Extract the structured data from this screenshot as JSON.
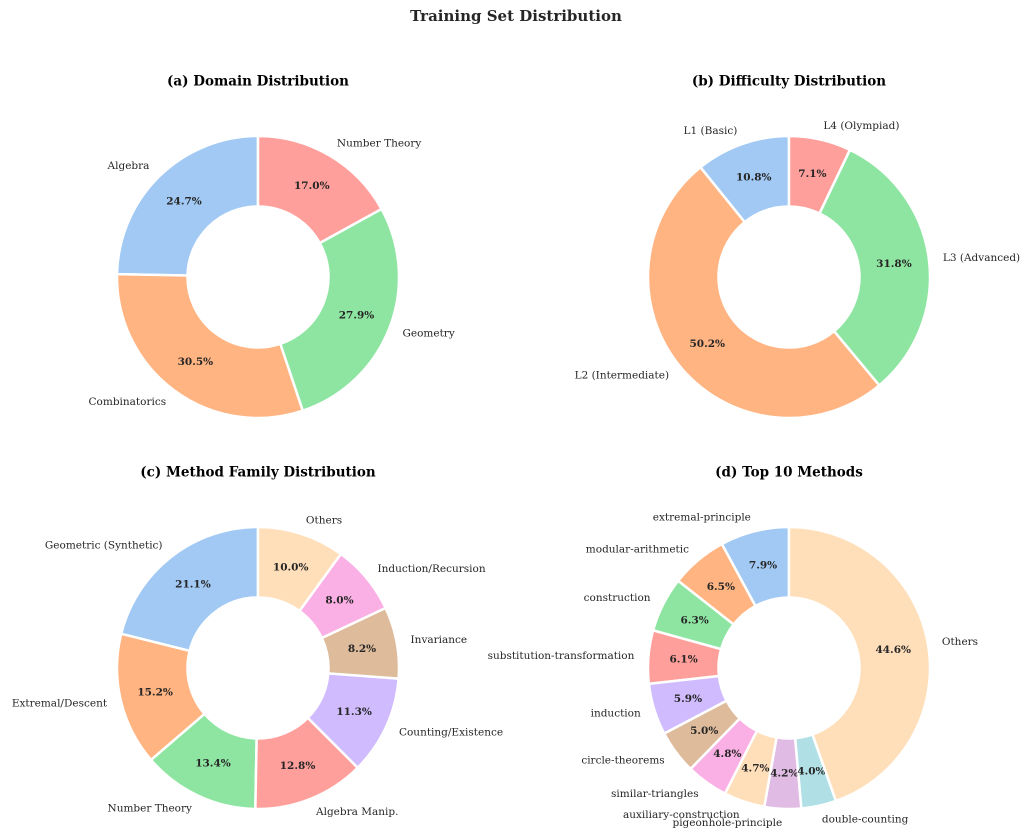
{
  "title": "Training Set Distribution",
  "chart_data": [
    {
      "type": "pie",
      "title": "(a) Domain Distribution",
      "donut": true,
      "start_angle": 90,
      "counterclock": true,
      "categories": [
        "Algebra",
        "Combinatorics",
        "Geometry",
        "Number Theory"
      ],
      "values": [
        24.7,
        30.5,
        27.9,
        17.0
      ],
      "value_labels": [
        "24.7%",
        "30.5%",
        "27.9%",
        "17.0%"
      ],
      "colors": [
        "#a1c9f4",
        "#ffb482",
        "#8de5a1",
        "#ff9f9b"
      ]
    },
    {
      "type": "pie",
      "title": "(b) Difficulty Distribution",
      "donut": true,
      "start_angle": 90,
      "counterclock": true,
      "categories": [
        "L1 (Basic)",
        "L2 (Intermediate)",
        "L3 (Advanced)",
        "L4 (Olympiad)"
      ],
      "values": [
        10.8,
        50.2,
        31.8,
        7.1
      ],
      "value_labels": [
        "10.8%",
        "50.2%",
        "31.8%",
        "7.1%"
      ],
      "colors": [
        "#a1c9f4",
        "#ffb482",
        "#8de5a1",
        "#ff9f9b"
      ]
    },
    {
      "type": "pie",
      "title": "(c) Method Family Distribution",
      "donut": true,
      "start_angle": 90,
      "counterclock": true,
      "categories": [
        "Geometric (Synthetic)",
        "Extremal/Descent",
        "Number Theory",
        "Algebra Manip.",
        "Counting/Existence",
        "Invariance",
        "Induction/Recursion",
        "Others"
      ],
      "values": [
        21.1,
        15.2,
        13.4,
        12.8,
        11.3,
        8.2,
        8.0,
        10.0
      ],
      "value_labels": [
        "21.1%",
        "15.2%",
        "13.4%",
        "12.8%",
        "11.3%",
        "8.2%",
        "8.0%",
        "10.0%"
      ],
      "colors": [
        "#a1c9f4",
        "#ffb482",
        "#8de5a1",
        "#ff9f9b",
        "#d0bbff",
        "#debb9b",
        "#fab0e4",
        "#ffdfba"
      ]
    },
    {
      "type": "pie",
      "title": "(d) Top 10 Methods",
      "donut": true,
      "start_angle": 90,
      "counterclock": true,
      "categories": [
        "extremal-principle",
        "modular-arithmetic",
        "construction",
        "substitution-transformation",
        "induction",
        "circle-theorems",
        "similar-triangles",
        "auxiliary-construction",
        "pigeonhole-principle",
        "double-counting",
        "Others"
      ],
      "values": [
        7.9,
        6.5,
        6.3,
        6.1,
        5.9,
        5.0,
        4.8,
        4.7,
        4.2,
        4.0,
        44.6
      ],
      "value_labels": [
        "7.9%",
        "6.5%",
        "6.3%",
        "6.1%",
        "5.9%",
        "5.0%",
        "4.8%",
        "4.7%",
        "4.2%",
        "4.0%",
        "44.6%"
      ],
      "colors": [
        "#a1c9f4",
        "#ffb482",
        "#8de5a1",
        "#ff9f9b",
        "#d0bbff",
        "#debb9b",
        "#fab0e4",
        "#ffdfba",
        "#e0bbe4",
        "#b0dfe5",
        "#ffdfba"
      ]
    }
  ]
}
